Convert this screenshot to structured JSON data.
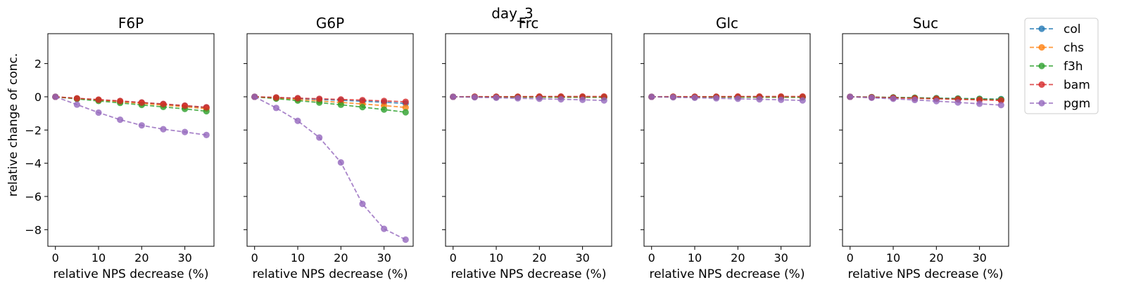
{
  "figure": {
    "suptitle": "day_3",
    "ylabel": "relative change of conc."
  },
  "chart_data": {
    "type": "line",
    "x": [
      0,
      5,
      10,
      15,
      20,
      25,
      30,
      35
    ],
    "xlabel": "relative NPS decrease (%)",
    "xticks": [
      0,
      10,
      20,
      30
    ],
    "yticks": [
      2,
      0,
      -2,
      -4,
      -6,
      -8
    ],
    "xlim": [
      -1.75,
      36.75
    ],
    "ylim": [
      -9,
      3.8
    ],
    "sharey": true,
    "legend_position": "outside-right",
    "legend": [
      {
        "name": "col",
        "color": "#1f77b4"
      },
      {
        "name": "chs",
        "color": "#ff7f0e"
      },
      {
        "name": "f3h",
        "color": "#2ca02c"
      },
      {
        "name": "bam",
        "color": "#d62728"
      },
      {
        "name": "pgm",
        "color": "#9467bd"
      }
    ],
    "panels": [
      {
        "title": "F6P",
        "series": [
          {
            "name": "col",
            "values": [
              0,
              -0.1,
              -0.18,
              -0.27,
              -0.36,
              -0.45,
              -0.55,
              -0.65
            ]
          },
          {
            "name": "chs",
            "values": [
              0,
              -0.11,
              -0.2,
              -0.3,
              -0.4,
              -0.5,
              -0.6,
              -0.72
            ]
          },
          {
            "name": "f3h",
            "values": [
              0,
              -0.13,
              -0.25,
              -0.37,
              -0.49,
              -0.61,
              -0.73,
              -0.87
            ]
          },
          {
            "name": "bam",
            "values": [
              0,
              -0.09,
              -0.17,
              -0.25,
              -0.34,
              -0.43,
              -0.53,
              -0.63
            ]
          },
          {
            "name": "pgm",
            "values": [
              0,
              -0.47,
              -0.95,
              -1.38,
              -1.72,
              -1.95,
              -2.12,
              -2.3
            ]
          }
        ]
      },
      {
        "title": "G6P",
        "series": [
          {
            "name": "col",
            "values": [
              0,
              -0.05,
              -0.1,
              -0.16,
              -0.21,
              -0.27,
              -0.33,
              -0.4
            ]
          },
          {
            "name": "chs",
            "values": [
              0,
              -0.08,
              -0.16,
              -0.25,
              -0.34,
              -0.43,
              -0.53,
              -0.64
            ]
          },
          {
            "name": "f3h",
            "values": [
              0,
              -0.11,
              -0.23,
              -0.35,
              -0.48,
              -0.62,
              -0.77,
              -0.93
            ]
          },
          {
            "name": "bam",
            "values": [
              0,
              -0.04,
              -0.08,
              -0.12,
              -0.16,
              -0.2,
              -0.25,
              -0.3
            ]
          },
          {
            "name": "pgm",
            "values": [
              0,
              -0.67,
              -1.45,
              -2.45,
              -3.95,
              -6.45,
              -7.95,
              -8.6
            ]
          }
        ]
      },
      {
        "title": "Frc",
        "series": [
          {
            "name": "col",
            "values": [
              0,
              0,
              -0.01,
              -0.01,
              -0.01,
              -0.01,
              -0.02,
              -0.02
            ]
          },
          {
            "name": "chs",
            "values": [
              0,
              0,
              -0.01,
              -0.01,
              -0.01,
              -0.02,
              -0.02,
              -0.02
            ]
          },
          {
            "name": "f3h",
            "values": [
              0,
              0,
              -0.01,
              -0.01,
              -0.02,
              -0.02,
              -0.02,
              -0.03
            ]
          },
          {
            "name": "bam",
            "values": [
              0,
              0.01,
              0.01,
              0.01,
              0.02,
              0.02,
              0.02,
              0.02
            ]
          },
          {
            "name": "pgm",
            "values": [
              0,
              -0.03,
              -0.06,
              -0.09,
              -0.12,
              -0.15,
              -0.18,
              -0.22
            ]
          }
        ]
      },
      {
        "title": "Glc",
        "series": [
          {
            "name": "col",
            "values": [
              0,
              0,
              -0.01,
              -0.01,
              -0.01,
              -0.01,
              -0.02,
              -0.02
            ]
          },
          {
            "name": "chs",
            "values": [
              0,
              0,
              -0.01,
              -0.01,
              -0.01,
              -0.02,
              -0.02,
              -0.02
            ]
          },
          {
            "name": "f3h",
            "values": [
              0,
              0,
              -0.01,
              -0.01,
              -0.02,
              -0.02,
              -0.02,
              -0.03
            ]
          },
          {
            "name": "bam",
            "values": [
              0,
              0.01,
              0.01,
              0.01,
              0.02,
              0.02,
              0.02,
              0.02
            ]
          },
          {
            "name": "pgm",
            "values": [
              0,
              -0.03,
              -0.06,
              -0.09,
              -0.12,
              -0.15,
              -0.18,
              -0.22
            ]
          }
        ]
      },
      {
        "title": "Suc",
        "series": [
          {
            "name": "col",
            "values": [
              0,
              -0.02,
              -0.04,
              -0.06,
              -0.08,
              -0.1,
              -0.12,
              -0.14
            ]
          },
          {
            "name": "chs",
            "values": [
              0,
              -0.02,
              -0.05,
              -0.07,
              -0.1,
              -0.13,
              -0.16,
              -0.19
            ]
          },
          {
            "name": "f3h",
            "values": [
              0,
              -0.02,
              -0.04,
              -0.06,
              -0.09,
              -0.11,
              -0.13,
              -0.16
            ]
          },
          {
            "name": "bam",
            "values": [
              0,
              -0.03,
              -0.06,
              -0.09,
              -0.12,
              -0.15,
              -0.18,
              -0.22
            ]
          },
          {
            "name": "pgm",
            "values": [
              0,
              -0.06,
              -0.12,
              -0.19,
              -0.26,
              -0.34,
              -0.42,
              -0.5
            ]
          }
        ]
      }
    ]
  }
}
